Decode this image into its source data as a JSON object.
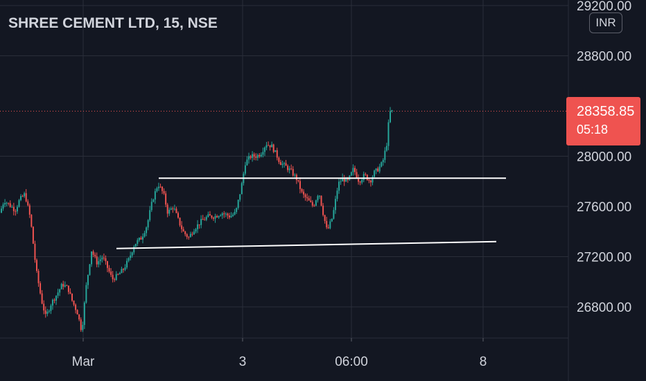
{
  "header": {
    "symbol_title": "SHREE CEMENT LTD, 15, NSE",
    "currency": "INR"
  },
  "price_tag": {
    "price": "28358.85",
    "countdown": "05:18"
  },
  "colors": {
    "background": "#131722",
    "up": "#26a69a",
    "down": "#ef5350",
    "grid": "#2a2e39",
    "text": "#d1d4dc",
    "trendline": "#ffffff"
  },
  "chart_data": {
    "type": "candlestick",
    "y_axis": {
      "ylim": [
        26620,
        29220
      ],
      "ticks": [
        "26800.00",
        "27200.00",
        "27600.00",
        "28000.00",
        "28800.00",
        "29200.00"
      ],
      "tick_values": [
        26800,
        27200,
        27600,
        28000,
        28800,
        29200
      ]
    },
    "x_axis": {
      "tick_labels": [
        "Mar",
        "3",
        "06:00",
        "8"
      ]
    },
    "last_price": 28358.85,
    "trendlines": [
      {
        "from": [
          229,
          27825
        ],
        "to": [
          730,
          27825
        ]
      },
      {
        "from": [
          168,
          27265
        ],
        "to": [
          716,
          27320
        ]
      }
    ],
    "anchors": [
      [
        0,
        27550
      ],
      [
        6,
        27650
      ],
      [
        14,
        27610
      ],
      [
        22,
        27570
      ],
      [
        28,
        27650
      ],
      [
        36,
        27700
      ],
      [
        44,
        27500
      ],
      [
        52,
        27100
      ],
      [
        60,
        26850
      ],
      [
        66,
        26720
      ],
      [
        74,
        26830
      ],
      [
        82,
        26900
      ],
      [
        90,
        26980
      ],
      [
        98,
        26950
      ],
      [
        104,
        26850
      ],
      [
        112,
        26750
      ],
      [
        118,
        26600
      ],
      [
        124,
        26950
      ],
      [
        132,
        27250
      ],
      [
        140,
        27150
      ],
      [
        148,
        27200
      ],
      [
        156,
        27100
      ],
      [
        162,
        27020
      ],
      [
        170,
        27050
      ],
      [
        178,
        27100
      ],
      [
        186,
        27180
      ],
      [
        194,
        27300
      ],
      [
        204,
        27350
      ],
      [
        212,
        27450
      ],
      [
        220,
        27650
      ],
      [
        228,
        27780
      ],
      [
        236,
        27700
      ],
      [
        242,
        27550
      ],
      [
        250,
        27600
      ],
      [
        258,
        27480
      ],
      [
        264,
        27400
      ],
      [
        272,
        27350
      ],
      [
        280,
        27420
      ],
      [
        290,
        27480
      ],
      [
        300,
        27520
      ],
      [
        310,
        27520
      ],
      [
        320,
        27550
      ],
      [
        332,
        27520
      ],
      [
        340,
        27550
      ],
      [
        348,
        27750
      ],
      [
        354,
        27950
      ],
      [
        362,
        28000
      ],
      [
        370,
        28000
      ],
      [
        376,
        28020
      ],
      [
        384,
        28100
      ],
      [
        392,
        28080
      ],
      [
        398,
        28020
      ],
      [
        404,
        27950
      ],
      [
        412,
        27920
      ],
      [
        420,
        27880
      ],
      [
        428,
        27820
      ],
      [
        436,
        27700
      ],
      [
        444,
        27650
      ],
      [
        452,
        27600
      ],
      [
        460,
        27720
      ],
      [
        466,
        27550
      ],
      [
        472,
        27400
      ],
      [
        480,
        27520
      ],
      [
        488,
        27780
      ],
      [
        494,
        27820
      ],
      [
        502,
        27800
      ],
      [
        510,
        27900
      ],
      [
        518,
        27800
      ],
      [
        526,
        27850
      ],
      [
        534,
        27800
      ],
      [
        540,
        27870
      ],
      [
        546,
        27900
      ],
      [
        552,
        27950
      ],
      [
        558,
        28100
      ],
      [
        562,
        28350
      ],
      [
        566,
        28358
      ]
    ]
  }
}
